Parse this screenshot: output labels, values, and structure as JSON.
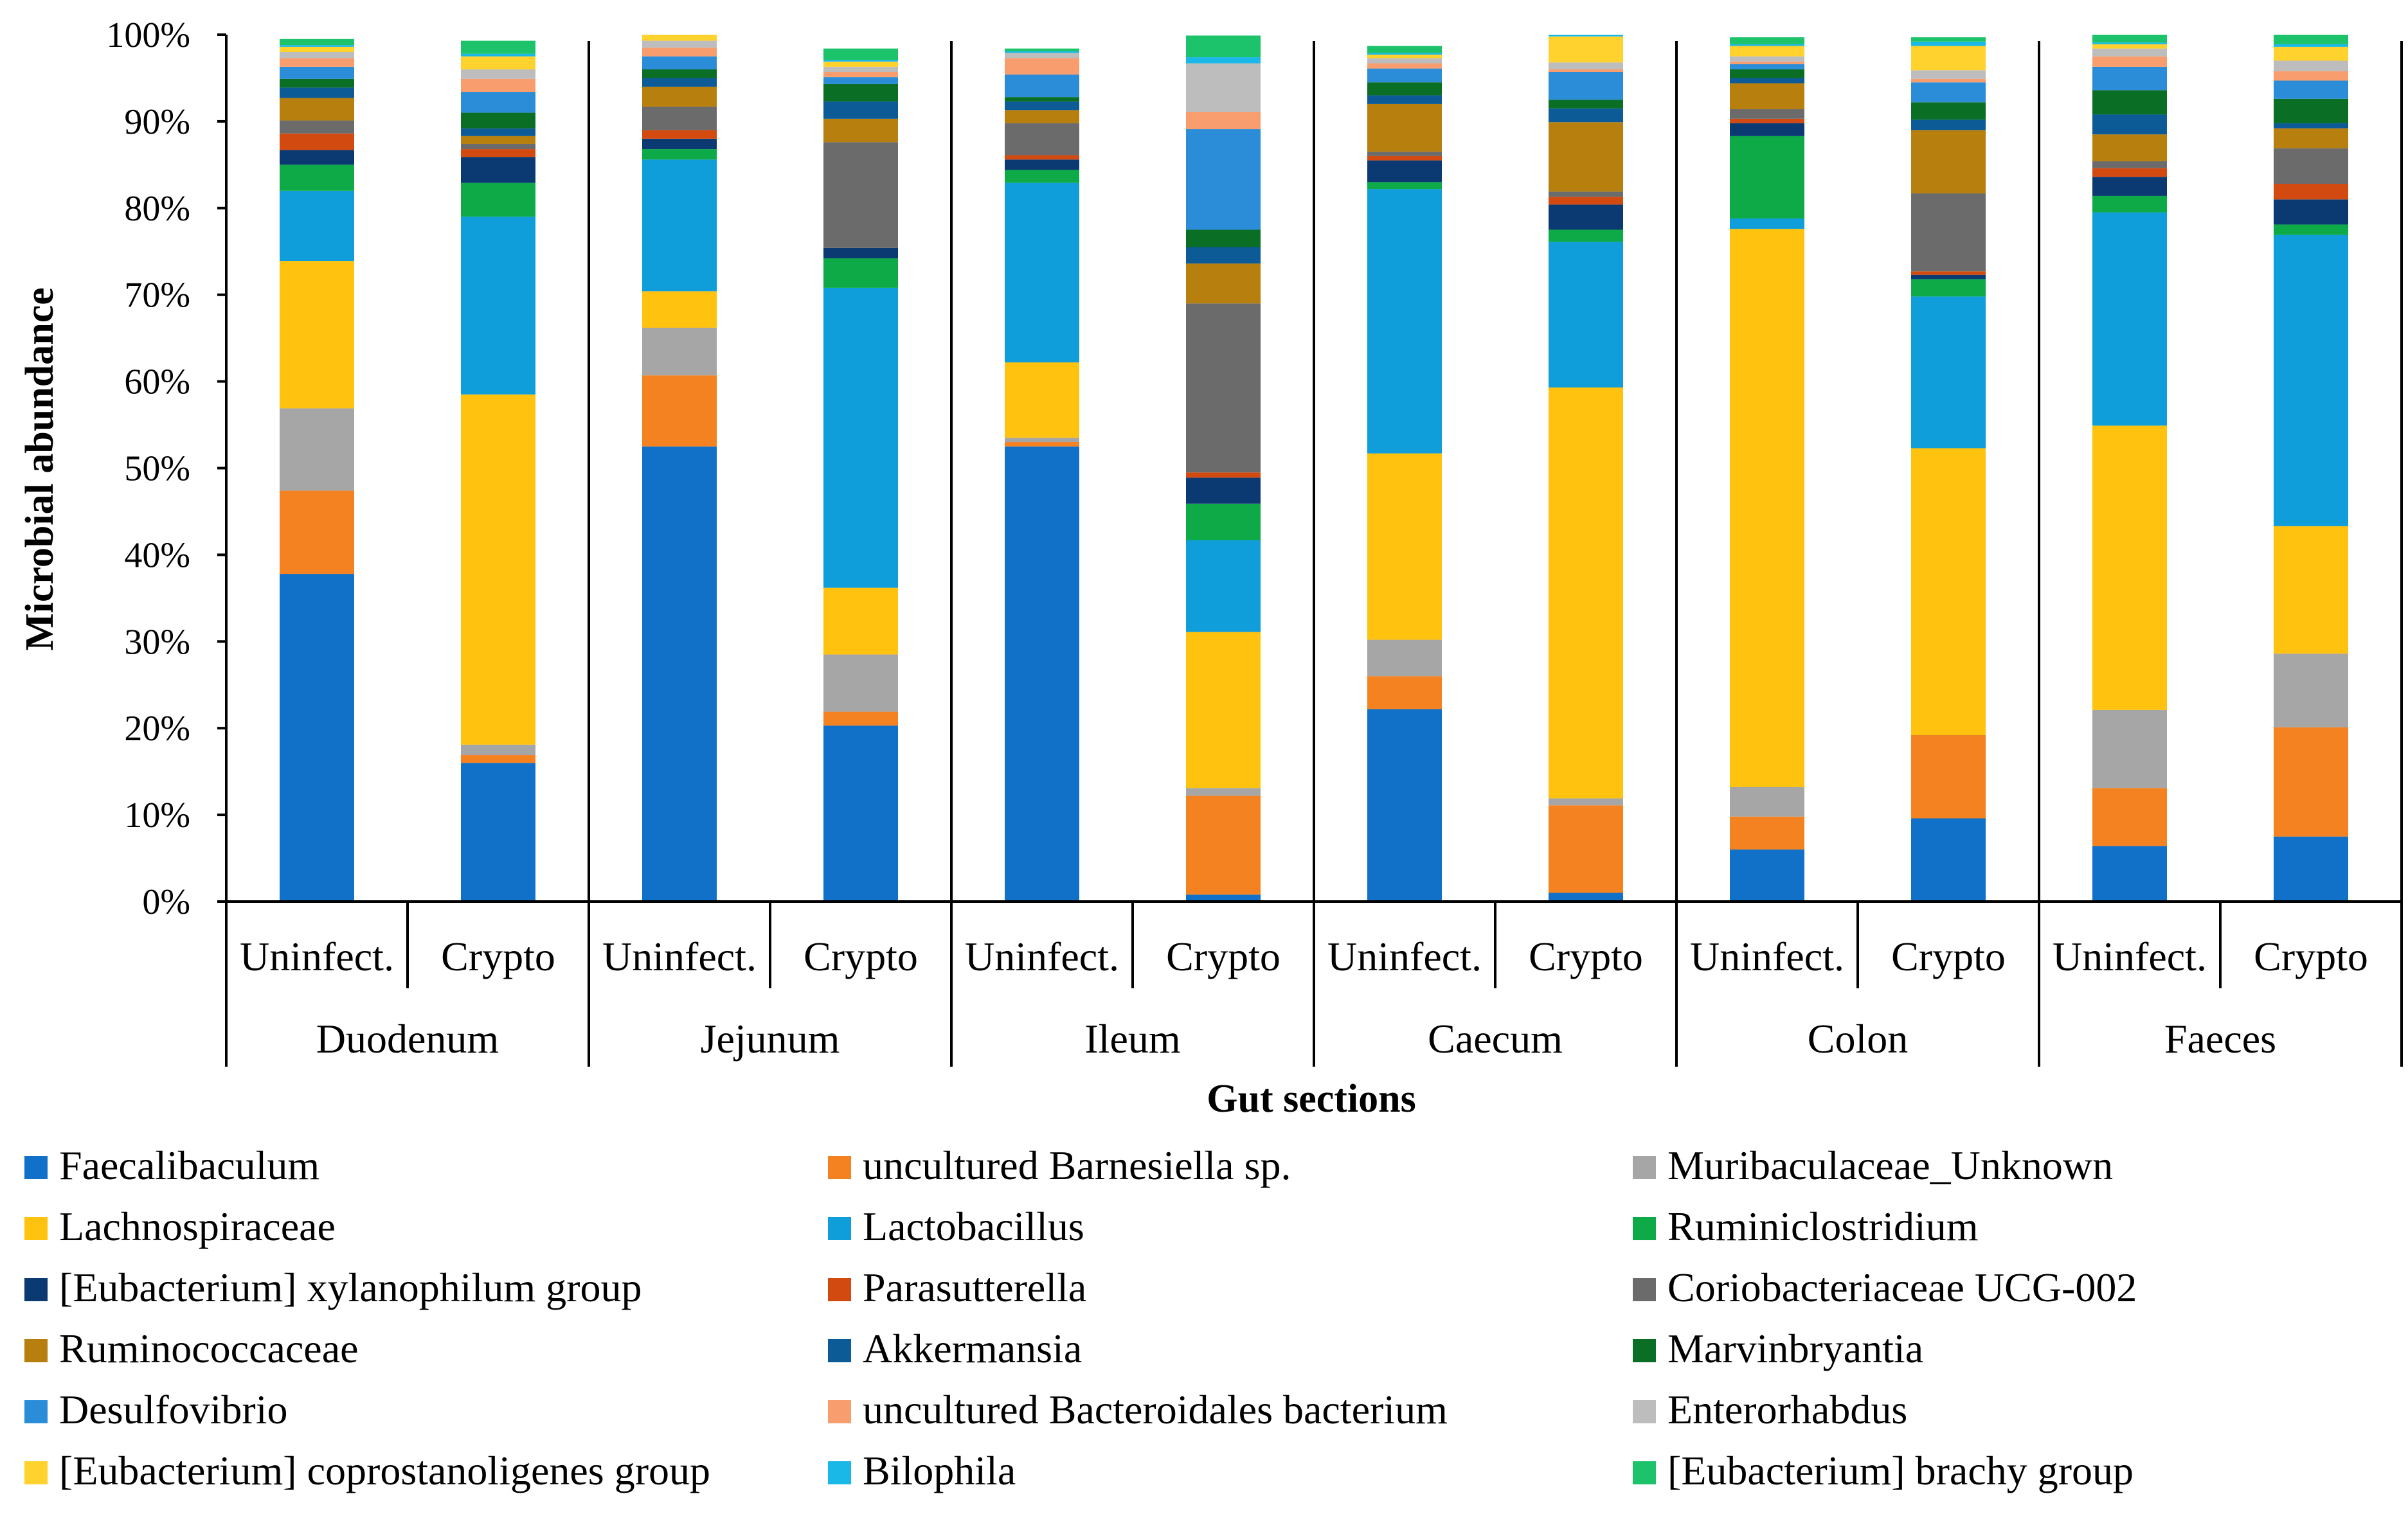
{
  "chart_data": {
    "type": "bar",
    "stacked": true,
    "stack_mode": "percent",
    "title": "",
    "xlabel": "Gut sections",
    "ylabel": "Microbial abundance",
    "ylim": [
      0,
      100
    ],
    "yticks": [
      "0%",
      "10%",
      "20%",
      "30%",
      "40%",
      "50%",
      "60%",
      "70%",
      "80%",
      "90%",
      "100%"
    ],
    "grid": false,
    "legend_position": "bottom",
    "groups": [
      {
        "label": "Duodenum",
        "bars": [
          "Uninfect.",
          "Crypto"
        ]
      },
      {
        "label": "Jejunum",
        "bars": [
          "Uninfect.",
          "Crypto"
        ]
      },
      {
        "label": "Ileum",
        "bars": [
          "Uninfect.",
          "Crypto"
        ]
      },
      {
        "label": "Caecum",
        "bars": [
          "Uninfect.",
          "Crypto"
        ]
      },
      {
        "label": "Colon",
        "bars": [
          "Uninfect.",
          "Crypto"
        ]
      },
      {
        "label": "Faeces",
        "bars": [
          "Uninfect.",
          "Crypto"
        ]
      }
    ],
    "series": [
      {
        "name": "Faecalibaculum",
        "color": "#1170C8",
        "values": [
          37.8,
          16.0,
          52.5,
          20.3,
          52.5,
          0.8,
          22.2,
          1.0,
          6.0,
          9.6,
          6.4,
          7.5
        ]
      },
      {
        "name": "uncultured Barnesiella sp.",
        "color": "#F58220",
        "values": [
          9.6,
          0.9,
          8.2,
          1.6,
          0.5,
          11.4,
          3.8,
          10.1,
          3.8,
          9.6,
          6.7,
          12.6
        ]
      },
      {
        "name": "Muribaculaceae_Unknown",
        "color": "#A6A6A6",
        "values": [
          9.5,
          1.2,
          5.5,
          6.6,
          0.5,
          0.9,
          4.2,
          0.8,
          3.4,
          0,
          9.0,
          8.5
        ]
      },
      {
        "name": "Lachnospiraceae",
        "color": "#FFC20E",
        "values": [
          17.0,
          40.4,
          4.2,
          7.7,
          8.7,
          18.0,
          21.5,
          47.4,
          64.4,
          33.1,
          32.8,
          14.7
        ]
      },
      {
        "name": "Lactobacillus",
        "color": "#0F9ED9",
        "values": [
          8.1,
          20.5,
          15.2,
          34.6,
          20.7,
          10.6,
          30.5,
          16.8,
          1.2,
          17.5,
          24.6,
          33.6
        ]
      },
      {
        "name": "Ruminiclostridium",
        "color": "#0DAA47",
        "values": [
          3.0,
          3.9,
          1.2,
          3.4,
          1.5,
          4.2,
          0.8,
          1.4,
          9.5,
          2.0,
          1.9,
          1.2
        ]
      },
      {
        "name": "[Eubacterium] xylanophilum group",
        "color": "#0B3A73",
        "values": [
          1.7,
          3.0,
          1.2,
          1.2,
          1.2,
          3.0,
          2.5,
          2.9,
          1.5,
          0.5,
          2.2,
          2.9
        ]
      },
      {
        "name": "Parasutterella",
        "color": "#D24A10",
        "values": [
          1.9,
          0.9,
          1.0,
          0,
          0.5,
          0.6,
          0.5,
          0.9,
          0.5,
          0.4,
          1.0,
          1.8
        ]
      },
      {
        "name": "Coriobacteriaceae UCG-002",
        "color": "#6B6B6B",
        "values": [
          1.5,
          0.6,
          2.7,
          12.2,
          3.7,
          19.5,
          0.5,
          0.6,
          1.1,
          9.0,
          0.8,
          4.1
        ]
      },
      {
        "name": "Ruminococcaceae",
        "color": "#B7800E",
        "values": [
          2.6,
          0.9,
          2.3,
          2.7,
          1.5,
          4.6,
          5.5,
          8.0,
          3.0,
          7.3,
          3.1,
          2.3
        ]
      },
      {
        "name": "Akkermansia",
        "color": "#0D5B96",
        "values": [
          1.2,
          0.9,
          1.0,
          2.0,
          1.0,
          1.9,
          1.0,
          1.6,
          0.6,
          1.2,
          2.3,
          0.6
        ]
      },
      {
        "name": "Marvinbryantia",
        "color": "#0A6E25",
        "values": [
          1.0,
          1.8,
          1.0,
          2.0,
          0.5,
          2.0,
          1.5,
          1.0,
          1.0,
          2.0,
          2.8,
          2.8
        ]
      },
      {
        "name": "Desulfovibrio",
        "color": "#2B8DD8",
        "values": [
          1.4,
          2.4,
          1.5,
          0.8,
          2.6,
          11.6,
          1.6,
          3.2,
          0.6,
          2.3,
          2.7,
          2.1
        ]
      },
      {
        "name": "uncultured Bacteroidales bacterium",
        "color": "#F79D6E",
        "values": [
          1.0,
          1.5,
          1.0,
          0.6,
          1.9,
          2.0,
          0.6,
          0.3,
          0.3,
          0.4,
          1.2,
          1.1
        ]
      },
      {
        "name": "Enterorhabdus",
        "color": "#BDBDBD",
        "values": [
          0.7,
          1.1,
          0.8,
          0.6,
          0.6,
          5.6,
          0.6,
          0.8,
          0.6,
          1.0,
          0.9,
          1.2
        ]
      },
      {
        "name": "[Eubacterium] coprostanoligenes group",
        "color": "#FFD22E",
        "values": [
          0.6,
          1.5,
          0.7,
          0.6,
          0,
          0,
          0.4,
          3.0,
          1.2,
          2.8,
          0.5,
          1.6
        ]
      },
      {
        "name": "Bilophila",
        "color": "#19B8E6",
        "values": [
          0.2,
          0.3,
          0.1,
          0.2,
          0.2,
          0.7,
          0.2,
          0.2,
          0.2,
          0.5,
          0.2,
          0.3
        ]
      },
      {
        "name": "[Eubacterium] brachy group",
        "color": "#1CC36A",
        "values": [
          0.7,
          1.5,
          0.3,
          1.3,
          0.3,
          2.5,
          0.8,
          0.7,
          0.8,
          0.5,
          1.4,
          2.0
        ]
      }
    ]
  }
}
